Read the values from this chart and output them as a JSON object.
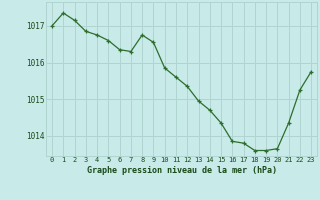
{
  "x": [
    0,
    1,
    2,
    3,
    4,
    5,
    6,
    7,
    8,
    9,
    10,
    11,
    12,
    13,
    14,
    15,
    16,
    17,
    18,
    19,
    20,
    21,
    22,
    23
  ],
  "y": [
    1017.0,
    1017.35,
    1017.15,
    1016.85,
    1016.75,
    1016.6,
    1016.35,
    1016.3,
    1016.75,
    1016.55,
    1015.85,
    1015.6,
    1015.35,
    1014.95,
    1014.7,
    1014.35,
    1013.85,
    1013.8,
    1013.6,
    1013.6,
    1013.65,
    1014.35,
    1015.25,
    1015.75
  ],
  "line_color": "#2d6e2d",
  "marker": "+",
  "bg_color": "#c8eae8",
  "grid_color": "#b0d4d0",
  "text_color": "#1a4a1a",
  "xlabel": "Graphe pression niveau de la mer (hPa)",
  "yticks": [
    1014,
    1015,
    1016,
    1017
  ],
  "xticks": [
    0,
    1,
    2,
    3,
    4,
    5,
    6,
    7,
    8,
    9,
    10,
    11,
    12,
    13,
    14,
    15,
    16,
    17,
    18,
    19,
    20,
    21,
    22,
    23
  ],
  "xlim": [
    -0.5,
    23.5
  ],
  "ylim": [
    1013.45,
    1017.65
  ]
}
